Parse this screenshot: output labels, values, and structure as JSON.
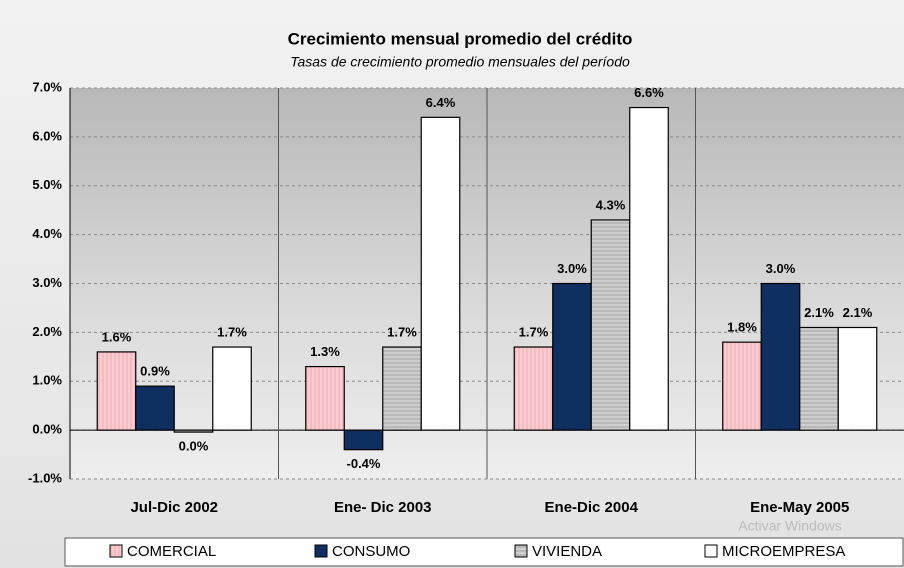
{
  "chart_data": {
    "type": "bar",
    "title": "Crecimiento mensual promedio del crédito",
    "subtitle": "Tasas de crecimiento promedio mensuales del período",
    "categories": [
      "Jul-Dic 2002",
      "Ene- Dic 2003",
      "Ene-Dic 2004",
      "Ene-May 2005"
    ],
    "series": [
      {
        "name": "COMERCIAL",
        "color": "#f6b9bf",
        "values": [
          1.6,
          1.3,
          1.7,
          1.8
        ],
        "value_labels": [
          "1.6%",
          "1.3%",
          "1.7%",
          "1.8%"
        ]
      },
      {
        "name": "CONSUMO",
        "color": "#0e2f5f",
        "values": [
          0.9,
          -0.4,
          3.0,
          3.0
        ],
        "value_labels": [
          "0.9%",
          "-0.4%",
          "3.0%",
          "3.0%"
        ]
      },
      {
        "name": "VIVIENDA",
        "color": "#b8b8b8",
        "values": [
          -0.04,
          1.7,
          4.3,
          2.1
        ],
        "value_labels": [
          "0.0%",
          "1.7%",
          "4.3%",
          "2.1%"
        ]
      },
      {
        "name": "MICROEMPRESA",
        "color": "#ffffff",
        "values": [
          1.7,
          6.4,
          6.6,
          2.1
        ],
        "value_labels": [
          "1.7%",
          "6.4%",
          "6.6%",
          "2.1%"
        ]
      }
    ],
    "ylim": [
      -1,
      7
    ],
    "yticks": [
      {
        "value": -1,
        "label": "-1.0%"
      },
      {
        "value": 0,
        "label": "0.0%"
      },
      {
        "value": 1,
        "label": "1.0%"
      },
      {
        "value": 2,
        "label": "2.0%"
      },
      {
        "value": 3,
        "label": "3.0%"
      },
      {
        "value": 4,
        "label": "4.0%"
      },
      {
        "value": 5,
        "label": "5.0%"
      },
      {
        "value": 6,
        "label": "6.0%"
      },
      {
        "value": 7,
        "label": "7.0%"
      }
    ],
    "grid": true,
    "legend": "bottom",
    "watermark": "Activar Windows"
  }
}
